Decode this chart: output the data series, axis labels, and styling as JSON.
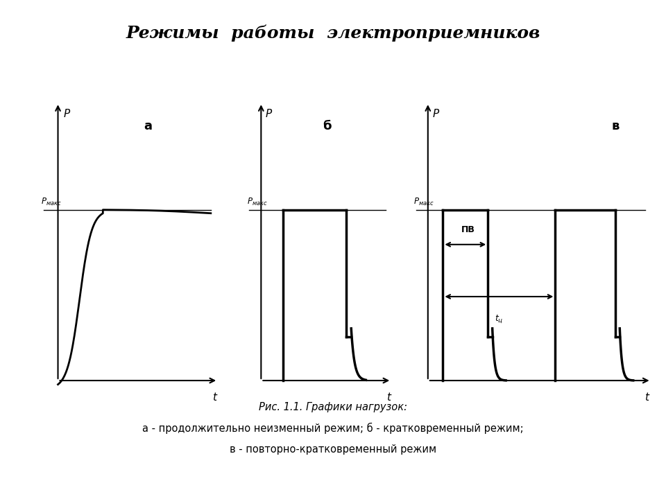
{
  "title": "Режимы  работы  электроприемников",
  "title_fontsize": 18,
  "caption_italic": "Рис. 1.1. Графики нагрузок:",
  "caption_line2": "а - продолжительно неизменный режим; б - кратковременный режим;",
  "caption_line3": "в - повторно-кратковременный режим",
  "bg_color": "#ffffff",
  "line_color": "#000000",
  "label_a": "а",
  "label_b": "б",
  "label_v": "в",
  "pmax_label": "P",
  "t_label": "t",
  "pv_label": "ПВ",
  "tc_label": "t_ц"
}
